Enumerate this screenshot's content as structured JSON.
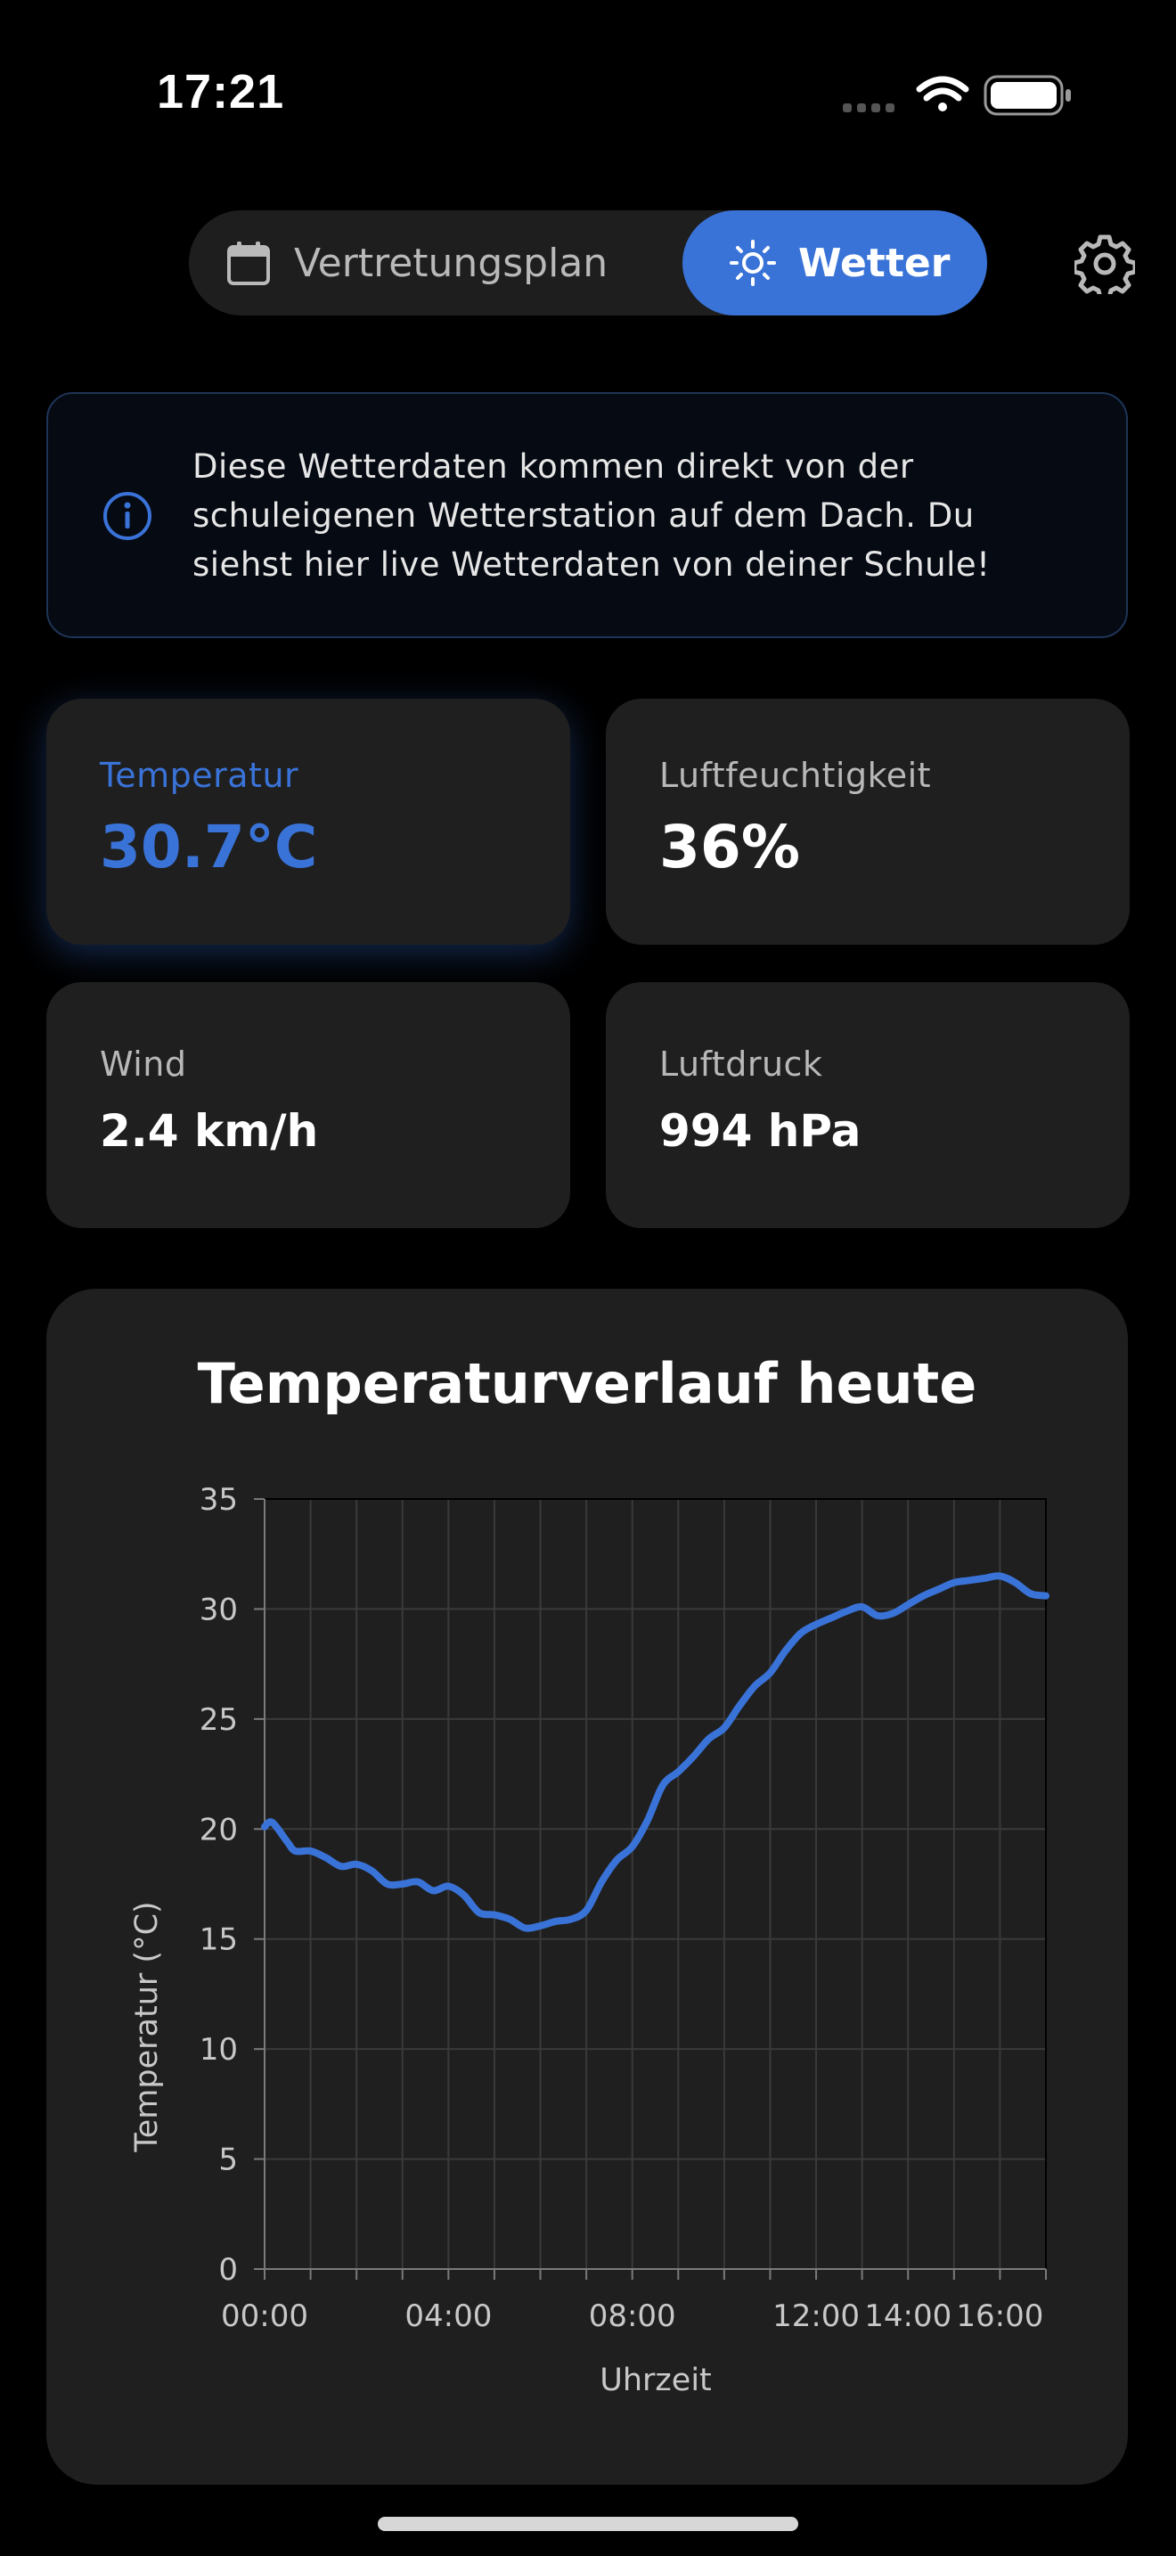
{
  "status_bar": {
    "time": "17:21"
  },
  "segmented": {
    "plan_label": "Vertretungsplan",
    "wetter_label": "Wetter",
    "active": "Wetter"
  },
  "icons": {
    "calendar": "calendar-icon",
    "sun": "sun-icon",
    "gear": "gear-icon",
    "info": "info-icon",
    "wifi": "wifi-icon",
    "battery": "battery-icon",
    "signal": "signal-icon"
  },
  "info": {
    "lines": [
      "Diese Wetterdaten kommen direkt von der",
      "schuleigenen Wetterstation auf dem Dach. Du",
      "siehst hier live Wetterdaten von deiner Schule!"
    ]
  },
  "cards": {
    "temperature": {
      "label": "Temperatur",
      "value": "30.7°C"
    },
    "humidity": {
      "label": "Luftfeuchtigkeit",
      "value": "36%"
    },
    "wind": {
      "label": "Wind",
      "value": "2.4 km/h"
    },
    "pressure": {
      "label": "Luftdruck",
      "value": "994 hPa"
    }
  },
  "colors": {
    "accent": "#3a73d8",
    "background": "#000000",
    "card": "#1f1f1f"
  },
  "chart_data": {
    "type": "line",
    "title": "Temperaturverlauf heute",
    "xlabel": "Uhrzeit",
    "ylabel": "Temperatur (°C)",
    "ylim": [
      0,
      35
    ],
    "yticks": [
      "0",
      "5",
      "10",
      "15",
      "20",
      "25",
      "30",
      "35"
    ],
    "xlim_hours": [
      0,
      17
    ],
    "xticks": [
      {
        "hour": 0,
        "label": "00:00"
      },
      {
        "hour": 4,
        "label": "04:00"
      },
      {
        "hour": 8,
        "label": "08:00"
      },
      {
        "hour": 12,
        "label": "12:00"
      },
      {
        "hour": 14,
        "label": "14:00"
      },
      {
        "hour": 16,
        "label": "16:00"
      }
    ],
    "grid": true,
    "series": [
      {
        "color": "#3a73d8",
        "x": [
          "00:00",
          "00:10",
          "00:30",
          "00:40",
          "01:00",
          "01:20",
          "01:40",
          "02:00",
          "02:20",
          "02:40",
          "03:00",
          "03:20",
          "03:40",
          "04:00",
          "04:20",
          "04:40",
          "05:00",
          "05:20",
          "05:40",
          "06:00",
          "06:20",
          "06:40",
          "07:00",
          "07:20",
          "07:40",
          "08:00",
          "08:20",
          "08:40",
          "09:00",
          "09:20",
          "09:40",
          "10:00",
          "10:20",
          "10:40",
          "11:00",
          "11:20",
          "11:40",
          "12:00",
          "12:20",
          "12:40",
          "13:00",
          "13:20",
          "13:40",
          "14:00",
          "14:20",
          "14:40",
          "15:00",
          "15:20",
          "15:40",
          "16:00",
          "16:20",
          "16:40",
          "17:00"
        ],
        "y": [
          20.1,
          20.3,
          19.4,
          19.0,
          19.0,
          18.7,
          18.3,
          18.4,
          18.1,
          17.5,
          17.5,
          17.6,
          17.2,
          17.4,
          17.0,
          16.2,
          16.1,
          15.9,
          15.5,
          15.6,
          15.8,
          15.9,
          16.3,
          17.6,
          18.6,
          19.2,
          20.4,
          22.0,
          22.6,
          23.3,
          24.1,
          24.6,
          25.6,
          26.5,
          27.1,
          28.1,
          28.9,
          29.3,
          29.6,
          29.9,
          30.1,
          29.7,
          29.8,
          30.2,
          30.6,
          30.9,
          31.2,
          31.3,
          31.4,
          31.5,
          31.2,
          30.7,
          30.6
        ]
      }
    ]
  }
}
